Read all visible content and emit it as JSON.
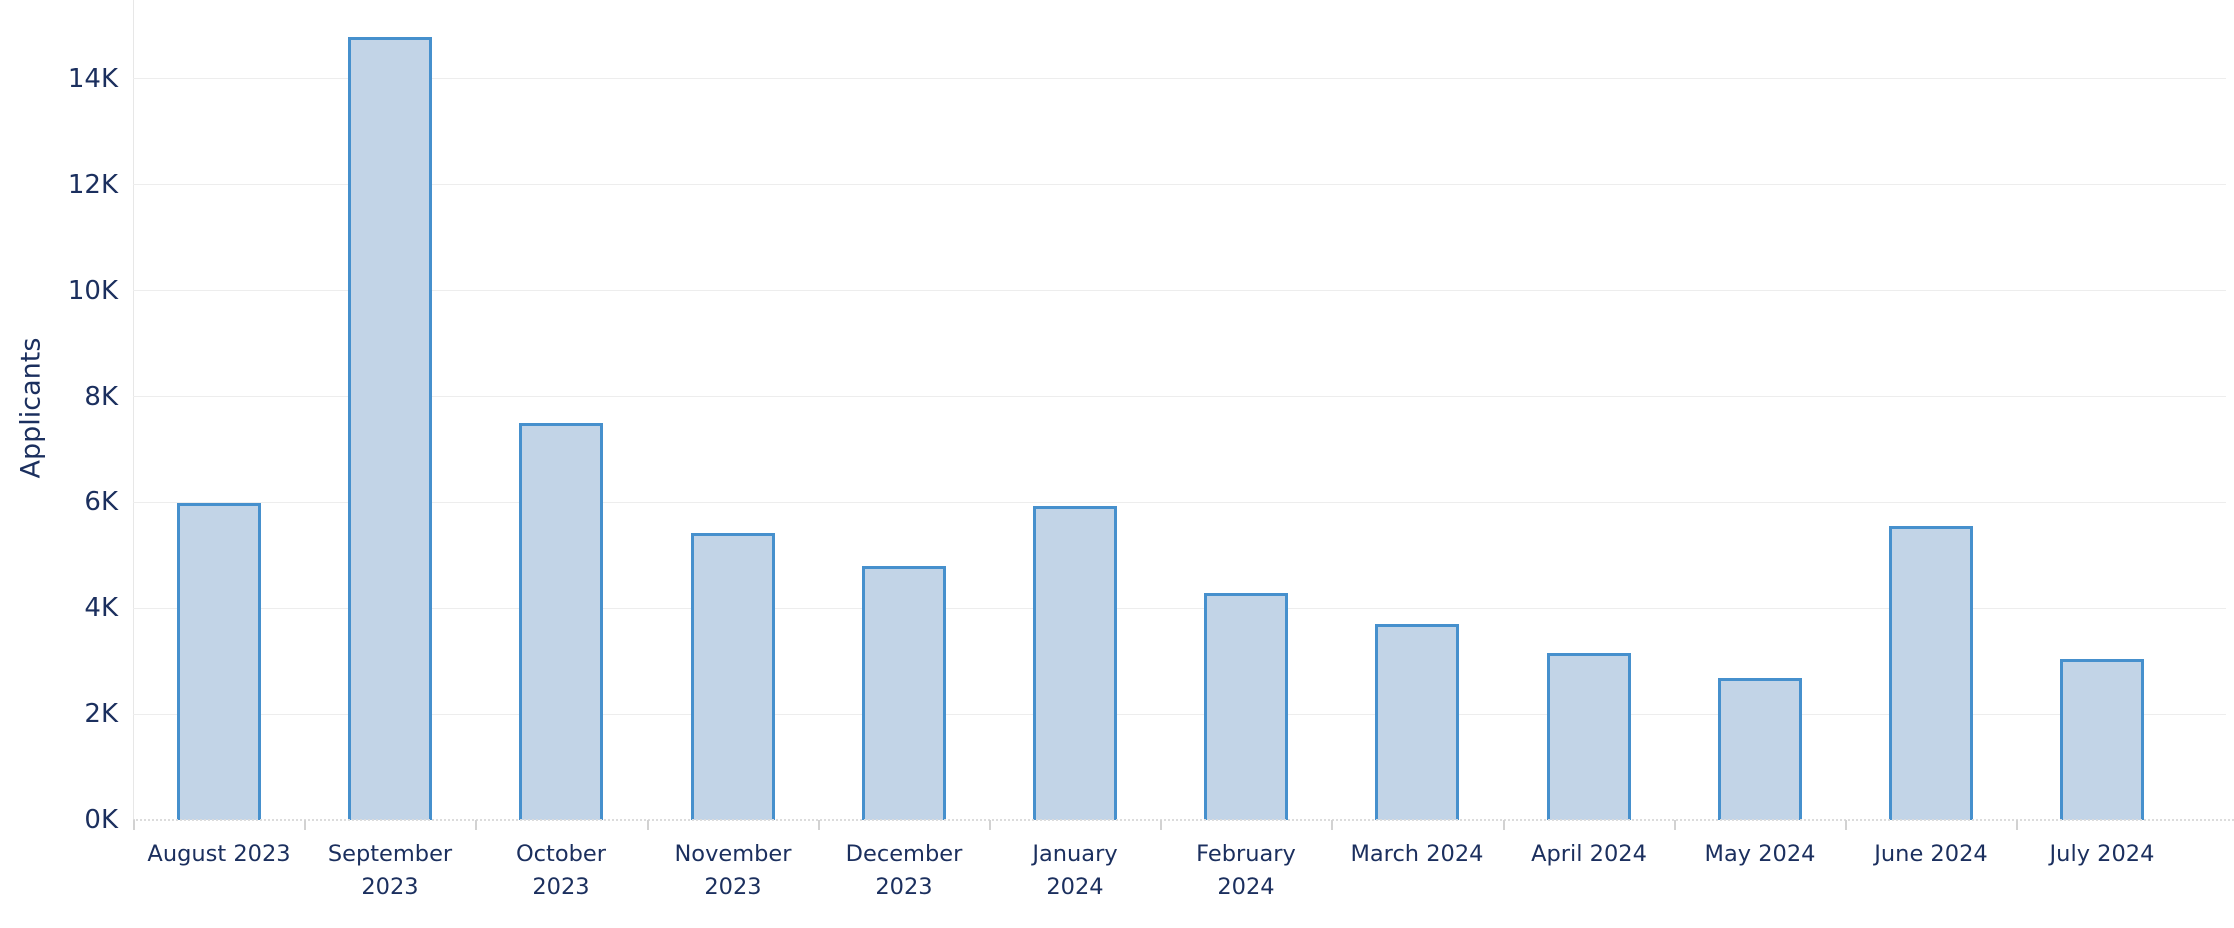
{
  "chart_data": {
    "type": "bar",
    "title": "",
    "xlabel": "",
    "ylabel": "Applicants",
    "categories": [
      "August 2023",
      "September 2023",
      "October 2023",
      "November 2023",
      "December 2023",
      "January 2024",
      "February 2024",
      "March 2024",
      "April 2024",
      "May 2024",
      "June 2024",
      "July 2024"
    ],
    "category_label_lines": [
      [
        "August 2023"
      ],
      [
        "September",
        "2023"
      ],
      [
        "October",
        "2023"
      ],
      [
        "November",
        "2023"
      ],
      [
        "December",
        "2023"
      ],
      [
        "January",
        "2024"
      ],
      [
        "February",
        "2024"
      ],
      [
        "March 2024"
      ],
      [
        "April 2024"
      ],
      [
        "May 2024"
      ],
      [
        "June 2024"
      ],
      [
        "July 2024"
      ]
    ],
    "values": [
      5980,
      14800,
      7500,
      5430,
      4800,
      5930,
      4290,
      3700,
      3150,
      2680,
      5550,
      3040
    ],
    "yticks": [
      {
        "label": "0K",
        "value": 0
      },
      {
        "label": "2K",
        "value": 2000
      },
      {
        "label": "4K",
        "value": 4000
      },
      {
        "label": "6K",
        "value": 6000
      },
      {
        "label": "8K",
        "value": 8000
      },
      {
        "label": "10K",
        "value": 10000
      },
      {
        "label": "12K",
        "value": 12000
      },
      {
        "label": "14K",
        "value": 14000
      }
    ],
    "ylim": [
      0,
      15500
    ],
    "grid": true,
    "legend": false,
    "colors": {
      "bar_fill": "#c2d4e7",
      "bar_border": "#4690cd",
      "axis_text": "#1b2f5e",
      "gridline": "#ededed"
    }
  }
}
